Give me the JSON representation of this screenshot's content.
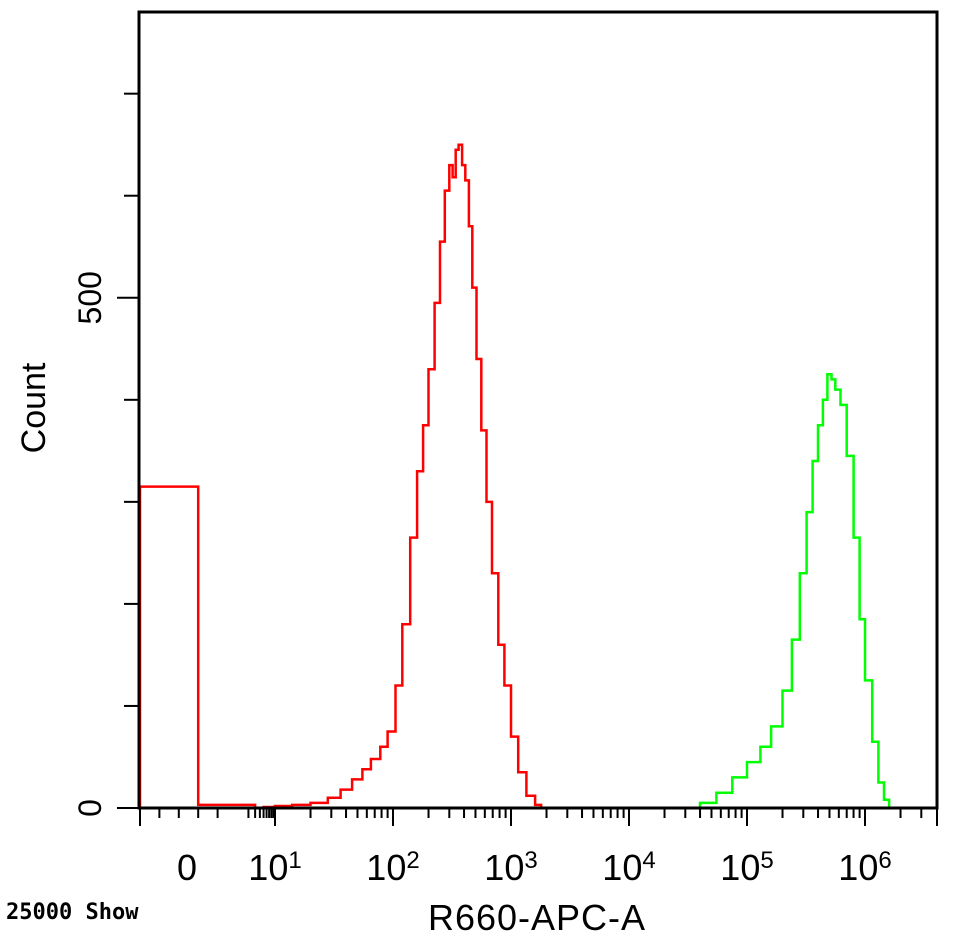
{
  "footer": {
    "event_count_label": "25000 Show"
  },
  "chart_data": {
    "type": "area",
    "xlabel": "R660-APC-A",
    "ylabel": "Count",
    "x_scale": "log",
    "ylim": [
      0,
      750
    ],
    "y_tick_labels": [
      {
        "value": 0,
        "label": "0"
      },
      {
        "value": 500,
        "label": "500"
      }
    ],
    "y_minor_ticks": [
      100,
      200,
      300,
      400,
      600,
      700
    ],
    "x_tick_labels": [
      {
        "value": 0,
        "base": "0",
        "exp": ""
      },
      {
        "value": 10,
        "base": "10",
        "exp": "1"
      },
      {
        "value": 100,
        "base": "10",
        "exp": "2"
      },
      {
        "value": 1000,
        "base": "10",
        "exp": "3"
      },
      {
        "value": 10000,
        "base": "10",
        "exp": "4"
      },
      {
        "value": 100000,
        "base": "10",
        "exp": "5"
      },
      {
        "value": 1000000,
        "base": "10",
        "exp": "6"
      }
    ],
    "series": [
      {
        "color": "#ff0000",
        "points": [
          [
            0,
            315
          ],
          [
            0.6,
            3
          ],
          [
            3,
            0
          ],
          [
            5,
            1
          ],
          [
            7,
            1
          ],
          [
            10,
            2
          ],
          [
            14,
            3
          ],
          [
            20,
            5
          ],
          [
            28,
            10
          ],
          [
            36,
            18
          ],
          [
            45,
            28
          ],
          [
            55,
            38
          ],
          [
            65,
            48
          ],
          [
            78,
            60
          ],
          [
            90,
            75
          ],
          [
            105,
            120
          ],
          [
            120,
            180
          ],
          [
            140,
            265
          ],
          [
            160,
            330
          ],
          [
            180,
            375
          ],
          [
            200,
            430
          ],
          [
            225,
            495
          ],
          [
            250,
            555
          ],
          [
            275,
            605
          ],
          [
            300,
            630
          ],
          [
            320,
            618
          ],
          [
            340,
            645
          ],
          [
            360,
            650
          ],
          [
            385,
            630
          ],
          [
            410,
            615
          ],
          [
            440,
            570
          ],
          [
            470,
            510
          ],
          [
            510,
            440
          ],
          [
            560,
            370
          ],
          [
            620,
            300
          ],
          [
            690,
            230
          ],
          [
            780,
            160
          ],
          [
            880,
            120
          ],
          [
            1000,
            70
          ],
          [
            1150,
            35
          ],
          [
            1350,
            12
          ],
          [
            1600,
            3
          ],
          [
            1800,
            0
          ]
        ]
      },
      {
        "color": "#00ff00",
        "points": [
          [
            30000,
            0
          ],
          [
            40000,
            5
          ],
          [
            55000,
            15
          ],
          [
            75000,
            30
          ],
          [
            100000,
            45
          ],
          [
            130000,
            60
          ],
          [
            160000,
            80
          ],
          [
            200000,
            115
          ],
          [
            240000,
            165
          ],
          [
            280000,
            230
          ],
          [
            320000,
            290
          ],
          [
            360000,
            340
          ],
          [
            400000,
            375
          ],
          [
            440000,
            400
          ],
          [
            480000,
            425
          ],
          [
            520000,
            420
          ],
          [
            560000,
            410
          ],
          [
            620000,
            395
          ],
          [
            700000,
            345
          ],
          [
            800000,
            265
          ],
          [
            900000,
            185
          ],
          [
            1000000,
            125
          ],
          [
            1150000,
            65
          ],
          [
            1300000,
            25
          ],
          [
            1450000,
            8
          ],
          [
            1600000,
            0
          ]
        ]
      }
    ]
  }
}
